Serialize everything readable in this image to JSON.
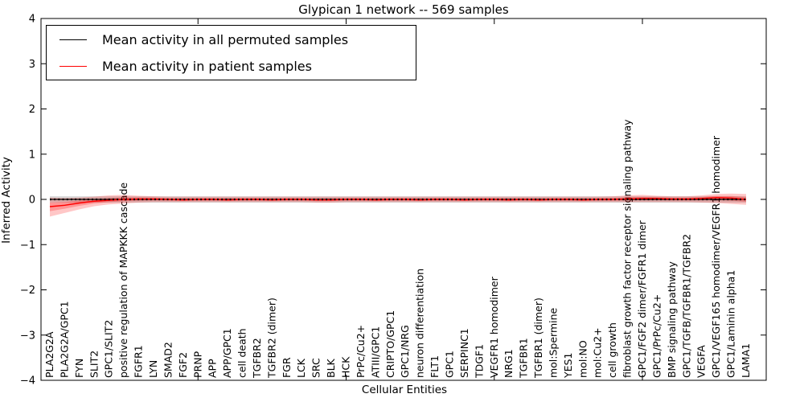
{
  "chart_data": {
    "type": "line",
    "title": "Glypican 1 network -- 569 samples",
    "xlabel": "Cellular Entities",
    "ylabel": "Inferred Activity",
    "ylim": [
      -4,
      4
    ],
    "ytick_labels": [
      "4",
      "3",
      "2",
      "1",
      "0",
      "−1",
      "−2",
      "−3",
      "−4"
    ],
    "ytick_values": [
      4,
      3,
      2,
      1,
      0,
      -1,
      -2,
      -3,
      -4
    ],
    "x_major_tick_indices": [
      10,
      20,
      30,
      40
    ],
    "grid": false,
    "legend_position": "upper left",
    "categories": [
      "PLA2G2A",
      "PLA2G2A/GPC1",
      "FYN",
      "SLIT2",
      "GPC1/SLIT2",
      "positive regulation of MAPKKK cascade",
      "FGFR1",
      "LYN",
      "SMAD2",
      "FGF2",
      "PRNP",
      "APP",
      "APP/GPC1",
      "cell death",
      "TGFBR2",
      "TGFBR2 (dimer)",
      "FGR",
      "LCK",
      "SRC",
      "BLK",
      "HCK",
      "PrPc/Cu2+",
      "ATIII/GPC1",
      "CRIPTO/GPC1",
      "GPC1/NRG",
      "neuron differentiation",
      "FLT1",
      "GPC1",
      "SERPINC1",
      "TDGF1",
      "VEGFR1 homodimer",
      "NRG1",
      "TGFBR1",
      "TGFBR1 (dimer)",
      "mol:Spermine",
      "YES1",
      "mol:NO",
      "mol:Cu2+",
      "cell growth",
      "fibroblast growth factor receptor signaling pathway",
      "GPC1/FGF2 dimer/FGFR1 dimer",
      "GPC1/PrPc/Cu2+",
      "BMP signaling pathway",
      "GPC1/TGFB/TGFBR1/TGFBR2",
      "VEGFA",
      "GPC1/VEGF165 homodimer/VEGFR1 homodimer",
      "GPC1/Laminin alpha1",
      "LAMA1"
    ],
    "series": [
      {
        "name": "Mean activity in all permuted samples",
        "color": "#000000",
        "values": [
          0,
          0,
          0,
          0,
          0,
          0,
          0,
          0,
          0,
          0,
          0,
          0,
          0,
          0,
          0,
          0,
          0,
          0,
          0,
          0,
          0,
          0,
          0,
          0,
          0,
          0,
          0,
          0,
          0,
          0,
          0,
          0,
          0,
          0,
          0,
          0,
          0,
          0,
          0,
          0,
          0,
          0,
          0,
          0,
          0,
          0,
          0,
          0
        ],
        "band_halfwidth": 0.07,
        "band_color": "rgba(0,0,0,0.16)",
        "line_style": "solid-with-dotted-overlay"
      },
      {
        "name": "Mean activity in patient samples",
        "color": "#ff0000",
        "values": [
          -0.16,
          -0.13,
          -0.08,
          -0.04,
          -0.02,
          0.0,
          0.01,
          0.01,
          0.0,
          -0.01,
          0.0,
          0.0,
          -0.01,
          0.0,
          0.0,
          -0.01,
          0.0,
          0.0,
          -0.01,
          -0.01,
          0.0,
          0.0,
          -0.01,
          0.0,
          0.0,
          -0.01,
          0.0,
          0.0,
          -0.01,
          0.0,
          0.0,
          -0.01,
          0.0,
          -0.01,
          0.0,
          0.0,
          -0.01,
          0.0,
          0.0,
          0.01,
          0.02,
          0.02,
          0.01,
          0.01,
          0.02,
          0.04,
          0.03,
          0.0
        ],
        "band_upper": [
          0.04,
          0.03,
          0.04,
          0.06,
          0.09,
          0.1,
          0.08,
          0.07,
          0.06,
          0.06,
          0.06,
          0.06,
          0.06,
          0.06,
          0.06,
          0.06,
          0.06,
          0.06,
          0.06,
          0.06,
          0.06,
          0.06,
          0.06,
          0.06,
          0.06,
          0.06,
          0.06,
          0.06,
          0.06,
          0.06,
          0.06,
          0.06,
          0.06,
          0.06,
          0.06,
          0.06,
          0.06,
          0.06,
          0.07,
          0.09,
          0.1,
          0.08,
          0.07,
          0.07,
          0.09,
          0.12,
          0.13,
          0.12
        ],
        "band_lower": [
          -0.38,
          -0.3,
          -0.22,
          -0.15,
          -0.11,
          -0.09,
          -0.07,
          -0.06,
          -0.06,
          -0.06,
          -0.06,
          -0.06,
          -0.06,
          -0.06,
          -0.06,
          -0.06,
          -0.06,
          -0.06,
          -0.07,
          -0.07,
          -0.06,
          -0.06,
          -0.06,
          -0.06,
          -0.06,
          -0.06,
          -0.06,
          -0.06,
          -0.06,
          -0.06,
          -0.06,
          -0.06,
          -0.06,
          -0.06,
          -0.06,
          -0.06,
          -0.06,
          -0.06,
          -0.06,
          -0.06,
          -0.06,
          -0.06,
          -0.06,
          -0.06,
          -0.07,
          -0.08,
          -0.1,
          -0.12
        ],
        "band_color": "rgba(255,0,0,0.22)",
        "band_inner_color": "rgba(255,0,0,0.25)"
      }
    ]
  }
}
